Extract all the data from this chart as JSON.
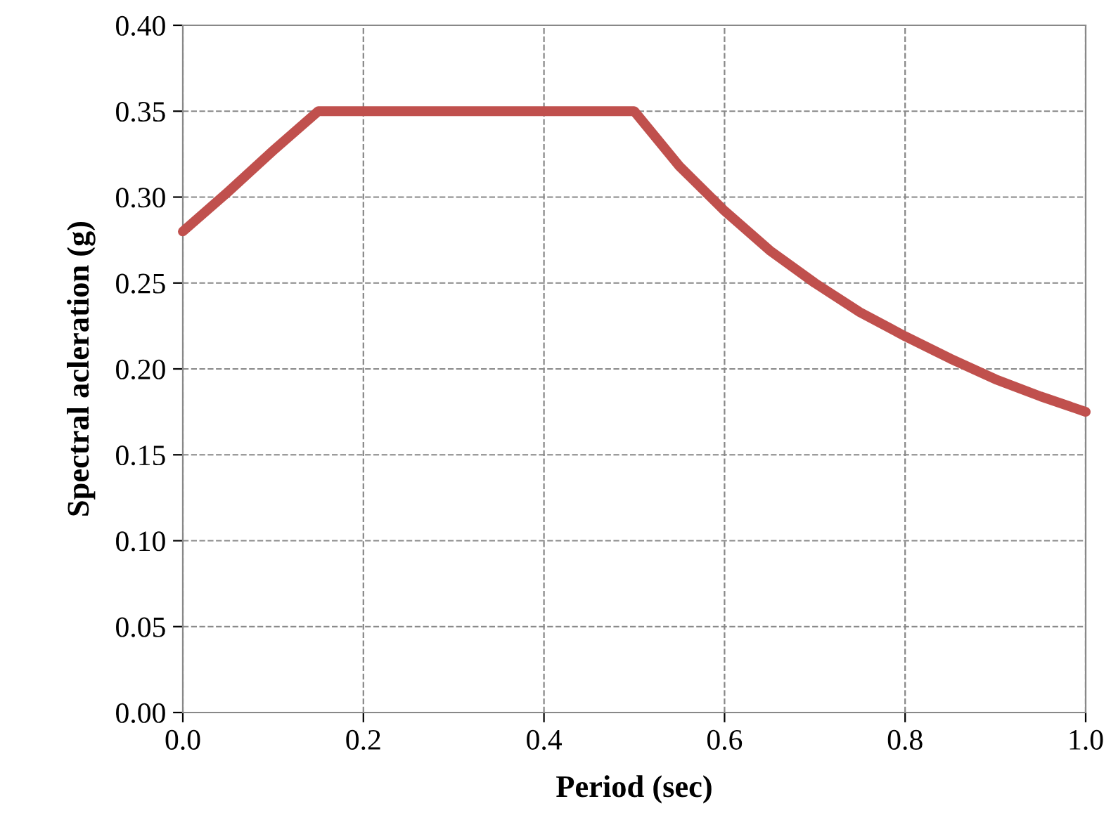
{
  "chart_data": {
    "type": "line",
    "xlabel": "Period (sec)",
    "ylabel": "Spectral acleration (g)",
    "x": [
      0.0,
      0.05,
      0.1,
      0.15,
      0.2,
      0.3,
      0.4,
      0.5,
      0.55,
      0.6,
      0.65,
      0.7,
      0.75,
      0.8,
      0.85,
      0.9,
      0.95,
      1.0
    ],
    "series": [
      {
        "color": "#c0504d",
        "values": [
          0.28,
          0.303,
          0.327,
          0.35,
          0.35,
          0.35,
          0.35,
          0.35,
          0.318,
          0.292,
          0.269,
          0.25,
          0.233,
          0.219,
          0.206,
          0.194,
          0.184,
          0.175
        ]
      }
    ],
    "xlim": [
      0.0,
      1.0
    ],
    "xticks": [
      {
        "value": 0.0,
        "label": "0.0"
      },
      0.2,
      0.4,
      0.6,
      0.8,
      {
        "value": 1.0,
        "label": "1.0"
      }
    ],
    "ylim": [
      0.0,
      0.4
    ],
    "yticks": [
      {
        "value": 0.0,
        "label": "0.00"
      },
      {
        "value": 0.05,
        "label": "0.05"
      },
      {
        "value": 0.1,
        "label": "0.10"
      },
      {
        "value": 0.15,
        "label": "0.15"
      },
      {
        "value": 0.2,
        "label": "0.20"
      },
      {
        "value": 0.25,
        "label": "0.25"
      },
      {
        "value": 0.3,
        "label": "0.30"
      },
      {
        "value": 0.35,
        "label": "0.35"
      },
      {
        "value": 0.4,
        "label": "0.40"
      }
    ],
    "grid": true,
    "marker": "none",
    "line_style": "solid",
    "legend": false
  }
}
